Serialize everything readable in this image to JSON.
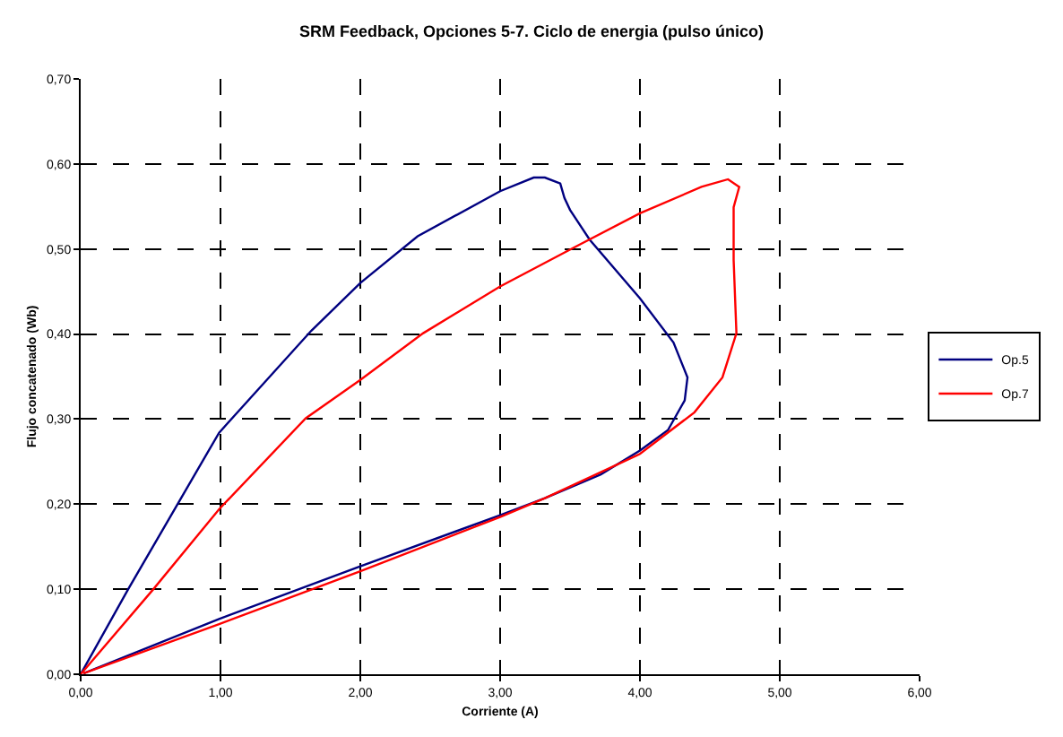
{
  "chart_data": {
    "type": "line",
    "title": "SRM Feedback, Opciones 5-7. Ciclo de energia (pulso único)",
    "xlabel": "Corriente (A)",
    "ylabel": "Flujo concatenado (Wb)",
    "xlim": [
      0,
      6
    ],
    "ylim": [
      0,
      0.7
    ],
    "xticks": [
      {
        "value": 0,
        "label": "0,00"
      },
      {
        "value": 1,
        "label": "1,00"
      },
      {
        "value": 2,
        "label": "2,00"
      },
      {
        "value": 3,
        "label": "3,00"
      },
      {
        "value": 4,
        "label": "4,00"
      },
      {
        "value": 5,
        "label": "5,00"
      },
      {
        "value": 6,
        "label": "6,00"
      }
    ],
    "yticks": [
      {
        "value": 0,
        "label": "0,00"
      },
      {
        "value": 0.1,
        "label": "0,10"
      },
      {
        "value": 0.2,
        "label": "0,20"
      },
      {
        "value": 0.3,
        "label": "0,30"
      },
      {
        "value": 0.4,
        "label": "0,40"
      },
      {
        "value": 0.5,
        "label": "0,50"
      },
      {
        "value": 0.6,
        "label": "0,60"
      },
      {
        "value": 0.7,
        "label": "0,70"
      }
    ],
    "grid": true,
    "legend": "right",
    "marker": "none",
    "line_style": "solid",
    "series": [
      {
        "name": "Op.5",
        "color": "#000080",
        "x": [
          0,
          0.34,
          0.99,
          1.65,
          2.0,
          2.41,
          3.0,
          3.24,
          3.32,
          3.43,
          3.46,
          3.5,
          3.64,
          4.0,
          4.24,
          4.34,
          4.32,
          4.2,
          4.0,
          3.72,
          3.32,
          3.0,
          2.0,
          0.99,
          0.02
        ],
        "values": [
          0,
          0.1,
          0.284,
          0.404,
          0.46,
          0.515,
          0.568,
          0.584,
          0.584,
          0.577,
          0.56,
          0.546,
          0.511,
          0.442,
          0.39,
          0.349,
          0.322,
          0.287,
          0.263,
          0.235,
          0.207,
          0.187,
          0.127,
          0.065,
          0.001
        ]
      },
      {
        "name": "Op.7",
        "color": "#ff0000",
        "x": [
          0,
          0.52,
          0.99,
          1.61,
          2.0,
          2.45,
          3.0,
          3.52,
          4.0,
          4.44,
          4.63,
          4.71,
          4.67,
          4.67,
          4.69,
          4.59,
          4.39,
          4.0,
          3.32,
          3.0,
          2.0,
          0.99,
          0.02
        ],
        "values": [
          0,
          0.1,
          0.194,
          0.301,
          0.346,
          0.401,
          0.456,
          0.501,
          0.542,
          0.573,
          0.582,
          0.573,
          0.549,
          0.487,
          0.401,
          0.349,
          0.308,
          0.259,
          0.207,
          0.185,
          0.121,
          0.059,
          0.001
        ]
      }
    ]
  }
}
